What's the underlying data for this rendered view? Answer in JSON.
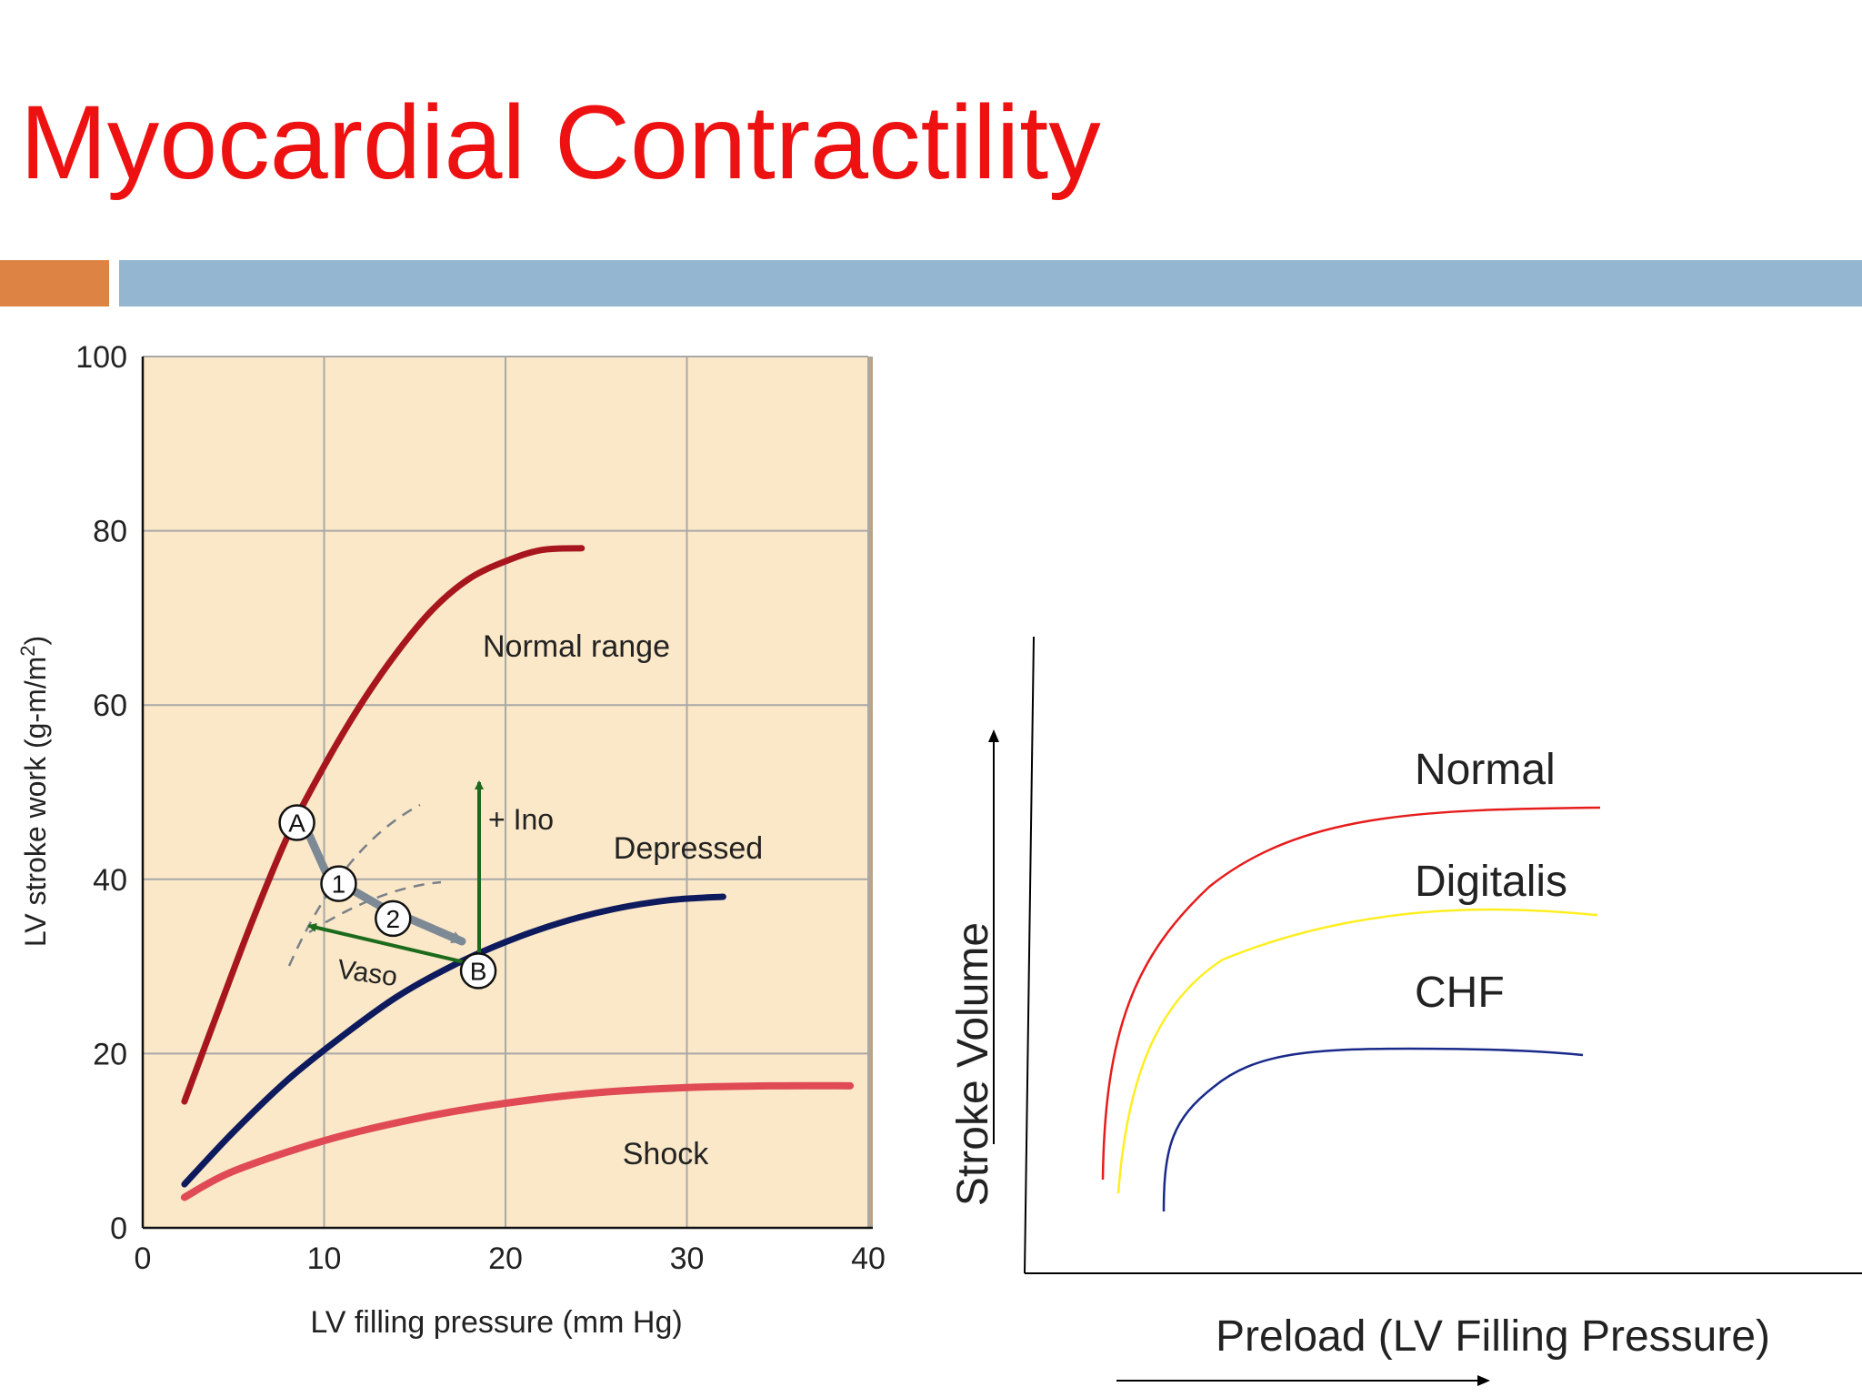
{
  "slide": {
    "title": "Myocardial Contractility",
    "colors": {
      "title": "#ee1111",
      "accent_bar": "#dd8444",
      "main_bar": "#94b6d0"
    }
  },
  "chart_data": [
    {
      "type": "line",
      "xlabel": "LV filling pressure (mm Hg)",
      "ylabel_main": "LV stroke work (g-m/m",
      "ylabel_sup": "2",
      "ylabel_end": ")",
      "xlim": [
        0,
        40
      ],
      "ylim": [
        0,
        100
      ],
      "x_ticks": [
        0,
        10,
        20,
        30,
        40
      ],
      "y_ticks": [
        0,
        20,
        40,
        60,
        80,
        100
      ],
      "grid": true,
      "background": "#fbe8c8",
      "series": [
        {
          "name": "Normal range",
          "color": "#a8161d",
          "x": [
            2.3,
            4,
            6,
            8,
            10,
            12,
            14,
            16,
            18,
            20,
            22,
            24.2
          ],
          "y": [
            14.5,
            24,
            35,
            45,
            53,
            60,
            66,
            71,
            74.5,
            76.5,
            77.8,
            78
          ]
        },
        {
          "name": "Depressed",
          "color": "#0e1a5e",
          "x": [
            2.3,
            5,
            8,
            11,
            14,
            17,
            20,
            23,
            26,
            29,
            32
          ],
          "y": [
            5,
            11,
            17,
            22,
            26.5,
            30,
            32.8,
            35,
            36.6,
            37.6,
            38
          ]
        },
        {
          "name": "Shock",
          "color": "#e04a55",
          "x": [
            2.3,
            5,
            10,
            15,
            20,
            25,
            30,
            35,
            39
          ],
          "y": [
            3.5,
            6.5,
            10,
            12.5,
            14.3,
            15.5,
            16.1,
            16.3,
            16.3
          ]
        }
      ],
      "points": [
        {
          "label": "A",
          "x": 8.5,
          "y": 46.5
        },
        {
          "label": "B",
          "x": 18.5,
          "y": 29.5
        }
      ],
      "steps": [
        {
          "label": "1",
          "x": 10.8,
          "y": 39.5
        },
        {
          "label": "2",
          "x": 13.8,
          "y": 35.5
        }
      ],
      "annotations": {
        "ino": "+ Ino",
        "vaso": "Vaso"
      }
    },
    {
      "type": "line",
      "xlabel": "Preload (LV Filling Pressure)",
      "ylabel": "Stroke Volume",
      "series": [
        {
          "name": "Normal",
          "color": "#e61c1c"
        },
        {
          "name": "Digitalis",
          "color": "#ffee22"
        },
        {
          "name": "CHF",
          "color": "#1a2a8a"
        }
      ]
    }
  ]
}
